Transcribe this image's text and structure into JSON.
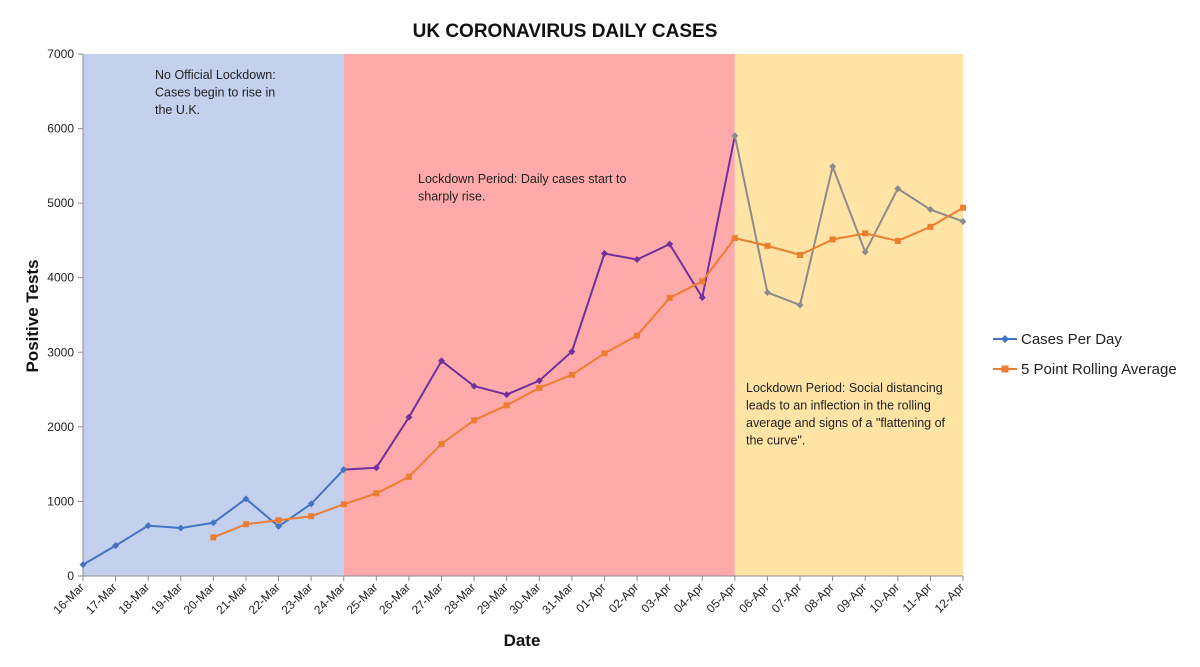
{
  "chart_data": {
    "type": "line",
    "title": "UK CORONAVIRUS DAILY CASES",
    "xlabel": "Date",
    "ylabel": "Positive Tests",
    "ylim": [
      0,
      7000
    ],
    "yticks": [
      0,
      1000,
      2000,
      3000,
      4000,
      5000,
      6000,
      7000
    ],
    "grid": false,
    "legend_position": "right",
    "categories": [
      "16-Mar",
      "17-Mar",
      "18-Mar",
      "19-Mar",
      "20-Mar",
      "21-Mar",
      "22-Mar",
      "23-Mar",
      "24-Mar",
      "25-Mar",
      "26-Mar",
      "27-Mar",
      "28-Mar",
      "29-Mar",
      "30-Mar",
      "31-Mar",
      "01-Apr",
      "02-Apr",
      "03-Apr",
      "04-Apr",
      "05-Apr",
      "06-Apr",
      "07-Apr",
      "08-Apr",
      "09-Apr",
      "10-Apr",
      "11-Apr",
      "12-Apr"
    ],
    "series": [
      {
        "name": "Cases Per Day",
        "color": "#4472C4",
        "marker": "diamond",
        "values": [
          152,
          407,
          676,
          643,
          714,
          1035,
          665,
          967,
          1427,
          1452,
          2129,
          2885,
          2546,
          2433,
          2619,
          3009,
          4324,
          4244,
          4450,
          3735,
          5903,
          3802,
          3634,
          5491,
          4344,
          5195,
          4914,
          4754
        ]
      },
      {
        "name": "5 Point Rolling Average",
        "color": "#ED7D31",
        "marker": "square",
        "values": [
          null,
          null,
          null,
          null,
          518,
          695,
          747,
          801,
          962,
          1109,
          1329,
          1772,
          2088,
          2289,
          2522,
          2698,
          2986,
          3224,
          3729,
          3952,
          4531,
          4427,
          4305,
          4513,
          4595,
          4493,
          4683,
          4938
        ]
      }
    ],
    "segment_line_colors": [
      "#4472C4",
      "#7030A0",
      "#8C8C8C"
    ],
    "regions": [
      {
        "from": "16-Mar",
        "to": "24-Mar",
        "color": "#C3D1EE",
        "annotation": [
          "No Official Lockdown:",
          "Cases begin to rise in",
          "the U.K."
        ]
      },
      {
        "from": "24-Mar",
        "to": "05-Apr",
        "color": "#FFAAAA",
        "annotation": [
          "Lockdown Period: Daily cases start to",
          "sharply rise."
        ]
      },
      {
        "from": "05-Apr",
        "to": "12-Apr",
        "color": "#FFE4A5",
        "annotation": [
          "Lockdown Period: Social distancing",
          "leads  to an inflection in the rolling",
          "average and signs of a \"flattening of",
          "the curve\"."
        ]
      }
    ]
  }
}
